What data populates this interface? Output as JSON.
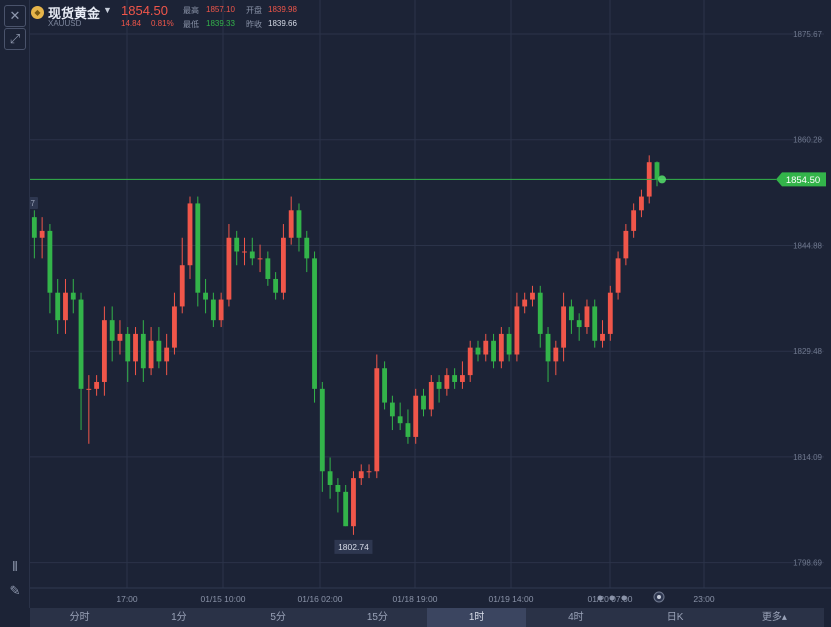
{
  "header": {
    "name": "现货黄金",
    "code": "XAUUSD",
    "price": "1854.50",
    "change": "14.84",
    "change_pct": "0.81%",
    "high_label": "最高",
    "high": "1857.10",
    "open_label": "开盘",
    "open": "1839.98",
    "low_label": "最低",
    "low": "1839.33",
    "prev_close_label": "昨收",
    "prev_close": "1839.66"
  },
  "chart": {
    "last_price_tag": "1854.50",
    "left_high_tag": "1851.07",
    "low_tag": "1802.74",
    "y_ticks": [
      "1875.67",
      "1860.28",
      "1844.88",
      "1829.48",
      "1814.09",
      "1798.69"
    ],
    "x_ticks": [
      "17:00",
      "01/15 10:00",
      "01/16 02:00",
      "01/18 19:00",
      "01/19 14:00",
      "01/20 07:00",
      "23:00"
    ]
  },
  "chart_data": {
    "type": "candlestick",
    "timeframe": "1时",
    "ylim": [
      1795,
      1878
    ],
    "up_color": "#f0564a",
    "down_color": "#33b44a",
    "candles": [
      [
        1852,
        1850,
        1855,
        1848
      ],
      [
        1850,
        1851,
        1853,
        1847
      ],
      [
        1851,
        1849,
        1853,
        1846
      ],
      [
        1849,
        1846,
        1850,
        1843
      ],
      [
        1846,
        1847,
        1849,
        1843
      ],
      [
        1847,
        1838,
        1848,
        1835
      ],
      [
        1838,
        1834,
        1840,
        1832
      ],
      [
        1834,
        1838,
        1840,
        1832
      ],
      [
        1838,
        1837,
        1840,
        1835
      ],
      [
        1837,
        1824,
        1838,
        1818
      ],
      [
        1824,
        1824,
        1826,
        1816
      ],
      [
        1824,
        1825,
        1826,
        1823
      ],
      [
        1825,
        1834,
        1836,
        1823
      ],
      [
        1834,
        1831,
        1836,
        1828
      ],
      [
        1831,
        1832,
        1834,
        1829
      ],
      [
        1832,
        1828,
        1833,
        1825
      ],
      [
        1828,
        1832,
        1833,
        1826
      ],
      [
        1832,
        1827,
        1834,
        1825
      ],
      [
        1827,
        1831,
        1833,
        1826
      ],
      [
        1831,
        1828,
        1833,
        1827
      ],
      [
        1828,
        1830,
        1832,
        1826
      ],
      [
        1830,
        1836,
        1838,
        1829
      ],
      [
        1836,
        1842,
        1846,
        1835
      ],
      [
        1842,
        1851,
        1852,
        1840
      ],
      [
        1851,
        1838,
        1852,
        1836
      ],
      [
        1838,
        1837,
        1840,
        1835
      ],
      [
        1837,
        1834,
        1838,
        1833
      ],
      [
        1834,
        1837,
        1838,
        1833
      ],
      [
        1837,
        1846,
        1848,
        1836
      ],
      [
        1846,
        1844,
        1847,
        1842
      ],
      [
        1844,
        1844,
        1846,
        1842
      ],
      [
        1844,
        1843,
        1846,
        1842
      ],
      [
        1843,
        1843,
        1845,
        1841
      ],
      [
        1843,
        1840,
        1844,
        1839
      ],
      [
        1840,
        1838,
        1841,
        1837
      ],
      [
        1838,
        1846,
        1848,
        1837
      ],
      [
        1846,
        1850,
        1852,
        1845
      ],
      [
        1850,
        1846,
        1851,
        1844
      ],
      [
        1846,
        1843,
        1847,
        1841
      ],
      [
        1843,
        1824,
        1844,
        1822
      ],
      [
        1824,
        1812,
        1825,
        1809
      ],
      [
        1812,
        1810,
        1814,
        1808
      ],
      [
        1810,
        1809,
        1811,
        1806
      ],
      [
        1809,
        1804,
        1810,
        1804
      ],
      [
        1804,
        1811,
        1812,
        1802.74
      ],
      [
        1811,
        1812,
        1813,
        1810
      ],
      [
        1812,
        1812,
        1813,
        1811
      ],
      [
        1812,
        1827,
        1829,
        1811
      ],
      [
        1827,
        1822,
        1828,
        1821
      ],
      [
        1822,
        1820,
        1823,
        1818
      ],
      [
        1820,
        1819,
        1822,
        1818
      ],
      [
        1819,
        1817,
        1821,
        1816
      ],
      [
        1817,
        1823,
        1824,
        1816
      ],
      [
        1823,
        1821,
        1824,
        1820
      ],
      [
        1821,
        1825,
        1826,
        1820
      ],
      [
        1825,
        1824,
        1826,
        1822
      ],
      [
        1824,
        1826,
        1827,
        1823
      ],
      [
        1826,
        1825,
        1827,
        1824
      ],
      [
        1825,
        1826,
        1828,
        1824
      ],
      [
        1826,
        1830,
        1831,
        1825
      ],
      [
        1830,
        1829,
        1831,
        1828
      ],
      [
        1829,
        1831,
        1832,
        1828
      ],
      [
        1831,
        1828,
        1832,
        1827
      ],
      [
        1828,
        1832,
        1833,
        1827
      ],
      [
        1832,
        1829,
        1833,
        1828
      ],
      [
        1829,
        1836,
        1838,
        1828
      ],
      [
        1836,
        1837,
        1838,
        1835
      ],
      [
        1837,
        1838,
        1839,
        1836
      ],
      [
        1838,
        1832,
        1839,
        1830
      ],
      [
        1832,
        1828,
        1833,
        1825
      ],
      [
        1828,
        1830,
        1831,
        1826
      ],
      [
        1830,
        1836,
        1838,
        1828
      ],
      [
        1836,
        1834,
        1837,
        1832
      ],
      [
        1834,
        1833,
        1835,
        1831
      ],
      [
        1833,
        1836,
        1837,
        1832
      ],
      [
        1836,
        1831,
        1837,
        1830
      ],
      [
        1831,
        1832,
        1834,
        1830
      ],
      [
        1832,
        1838,
        1839,
        1831
      ],
      [
        1838,
        1843,
        1844,
        1837
      ],
      [
        1843,
        1847,
        1848,
        1842
      ],
      [
        1847,
        1850,
        1851,
        1846
      ],
      [
        1850,
        1852,
        1853,
        1849
      ],
      [
        1852,
        1857,
        1858,
        1851
      ],
      [
        1857,
        1854.5,
        1857.1,
        1853.5
      ]
    ]
  },
  "tabs": [
    {
      "label": "分时"
    },
    {
      "label": "1分"
    },
    {
      "label": "5分"
    },
    {
      "label": "15分"
    },
    {
      "label": "1时"
    },
    {
      "label": "4时"
    },
    {
      "label": "日K"
    },
    {
      "label": "更多▴"
    }
  ],
  "colors": {
    "background": "#1c2336",
    "grid": "#2b3349",
    "up": "#f0564a",
    "down": "#33b44a",
    "last_line": "#33b44a"
  },
  "icons": [
    "close-icon",
    "draw-line-icon",
    "indicator-icon",
    "pen-icon",
    "chart-type-icon",
    "settings-dot-icon"
  ]
}
